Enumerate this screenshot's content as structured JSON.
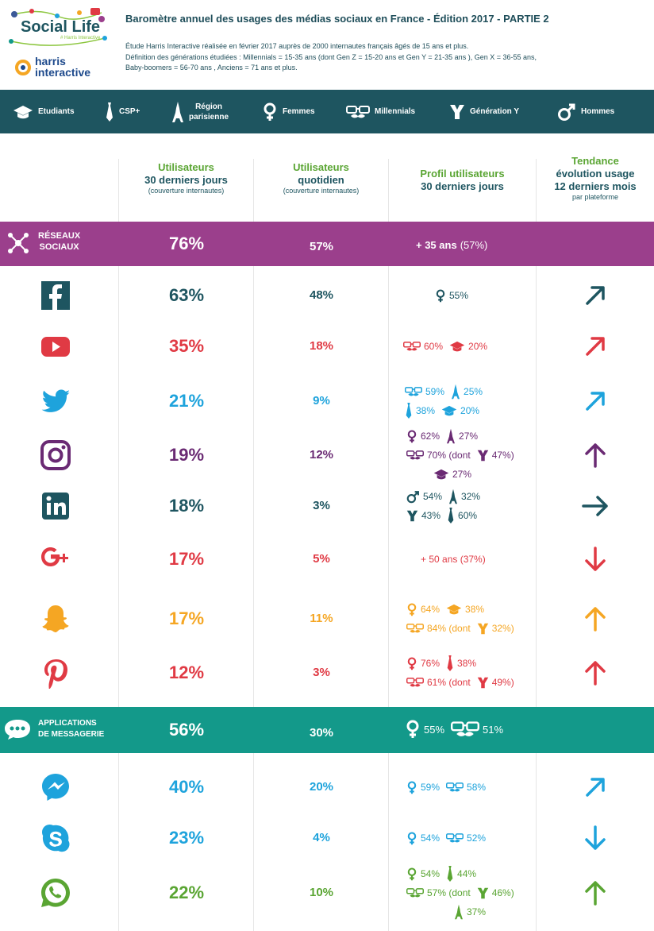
{
  "header": {
    "logo_social_life": "Social Life",
    "logo_social_life_tag": "# Harris Interactive",
    "logo_harris": "harris",
    "logo_interactive": "interactive",
    "title": "Baromètre annuel des usages des médias sociaux en France - Édition 2017 - PARTIE 2",
    "subtitle_1": "Étude Harris Interactive réalisée en février 2017 auprès de 2000 internautes français âgés de 15 ans et plus.",
    "subtitle_2": "Définition des générations étudiées : Millennials = 15-35 ans (dont Gen Z = 15-20 ans et Gen Y = 21-35 ans ), Gen X = 36-55 ans,",
    "subtitle_3": "Baby-boomers = 56-70 ans , Anciens = 71 ans et plus."
  },
  "legend": {
    "etudiants": "Etudiants",
    "csp": "CSP+",
    "region_1": "Région",
    "region_2": "parisienne",
    "femmes": "Femmes",
    "millennials": "Millennials",
    "gen_y": "Génération Y",
    "hommes": "Hommes"
  },
  "columns": {
    "c1_a": "Utilisateurs",
    "c1_b": "30 derniers jours",
    "c1_c": "(couverture internautes)",
    "c2_a": "Utilisateurs",
    "c2_b": "quotidien",
    "c2_c": "(couverture internautes)",
    "c3_a": "Profil utilisateurs",
    "c3_b": "30 derniers jours",
    "c4_a": "Tendance",
    "c4_b": "évolution usage",
    "c4_c": "12 derniers mois",
    "c4_d": "par plateforme"
  },
  "sections": {
    "reseaux": {
      "label_1": "RÉSEAUX",
      "label_2": "SOCIAUX",
      "users_30": "76%",
      "daily": "57%",
      "profile_bold": "+ 35 ans",
      "profile_rest": "(57%)",
      "color": "#9b3f8c"
    },
    "messagerie": {
      "label_1": "APPLICATIONS",
      "label_2": "DE MESSAGERIE",
      "users_30": "56%",
      "daily": "30%",
      "p1": "55%",
      "p2": "51%",
      "color": "#13998a"
    }
  },
  "platforms": [
    {
      "name": "Facebook",
      "icon": "facebook-icon",
      "users_30": "63%",
      "daily": "48%",
      "color": "#1e5560",
      "trend": "up-right",
      "p": [
        "55%"
      ]
    },
    {
      "name": "YouTube",
      "icon": "youtube-icon",
      "users_30": "35%",
      "daily": "18%",
      "color": "#e03a44",
      "trend": "up-right",
      "p": [
        "60%",
        "20%"
      ]
    },
    {
      "name": "Twitter",
      "icon": "twitter-icon",
      "users_30": "21%",
      "daily": "9%",
      "color": "#1ea3dc",
      "trend": "up-right",
      "p": [
        "59%",
        "25%",
        "38%",
        "20%"
      ]
    },
    {
      "name": "Instagram",
      "icon": "instagram-icon",
      "users_30": "19%",
      "daily": "12%",
      "color": "#6a2a73",
      "trend": "up",
      "p": [
        "62%",
        "27%",
        "70% (dont",
        "47%)",
        "27%"
      ]
    },
    {
      "name": "LinkedIn",
      "icon": "linkedin-icon",
      "users_30": "18%",
      "daily": "3%",
      "color": "#1e5560",
      "trend": "right",
      "p": [
        "54%",
        "32%",
        "43%",
        "60%"
      ]
    },
    {
      "name": "Google+",
      "icon": "googleplus-icon",
      "users_30": "17%",
      "daily": "5%",
      "color": "#e03a44",
      "trend": "down",
      "p": [
        "+ 50 ans (37%)"
      ]
    },
    {
      "name": "Snapchat",
      "icon": "snapchat-icon",
      "users_30": "17%",
      "daily": "11%",
      "color": "#f5a623",
      "trend": "up",
      "p": [
        "64%",
        "38%",
        "84% (dont",
        "32%)"
      ]
    },
    {
      "name": "Pinterest",
      "icon": "pinterest-icon",
      "users_30": "12%",
      "daily": "3%",
      "color": "#e03a44",
      "trend": "up",
      "p": [
        "76%",
        "38%",
        "61% (dont",
        "49%)"
      ]
    },
    {
      "name": "Messenger",
      "icon": "messenger-icon",
      "users_30": "40%",
      "daily": "20%",
      "color": "#1ea3dc",
      "trend": "up-right",
      "p": [
        "59%",
        "58%"
      ]
    },
    {
      "name": "Skype",
      "icon": "skype-icon",
      "users_30": "23%",
      "daily": "4%",
      "color": "#1ea3dc",
      "trend": "down",
      "p": [
        "54%",
        "52%"
      ]
    },
    {
      "name": "WhatsApp",
      "icon": "whatsapp-icon",
      "users_30": "22%",
      "daily": "10%",
      "color": "#5aa533",
      "trend": "up",
      "p": [
        "54%",
        "44%",
        "57% (dont",
        "46%)",
        "37%"
      ]
    }
  ]
}
